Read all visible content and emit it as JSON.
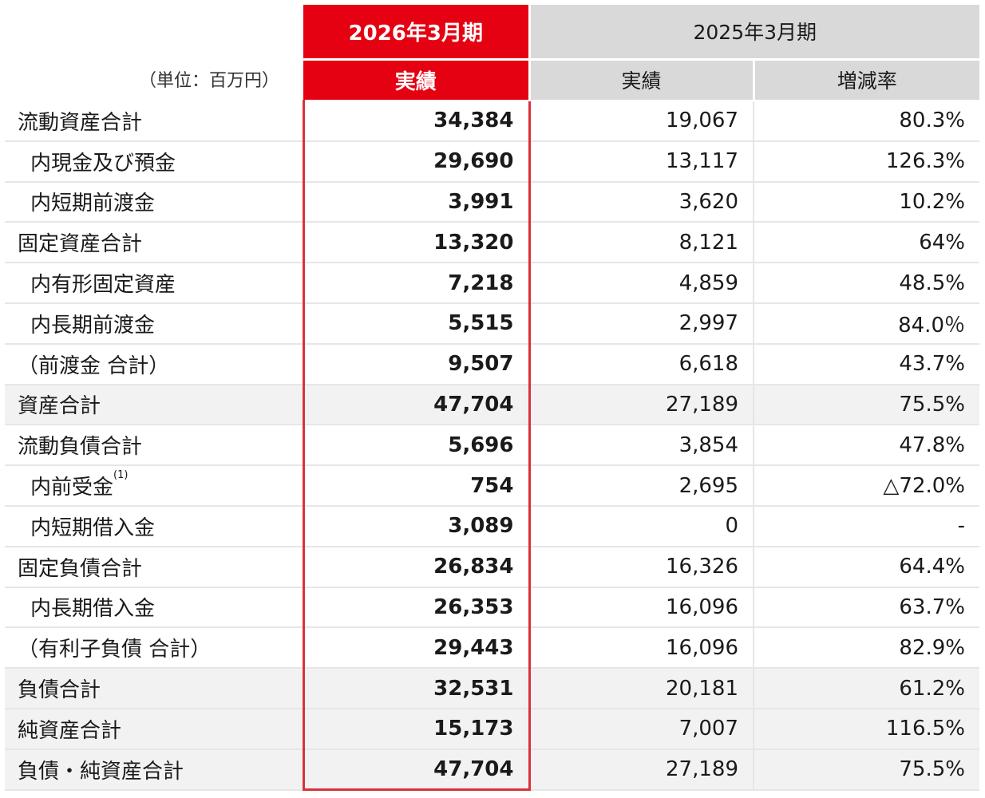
{
  "header": {
    "current_period": "2026年3月期",
    "current_sub": "実績",
    "previous_period": "2025年3月期",
    "previous_sub": "実績",
    "rate_sub": "増減率",
    "unit": "（単位：百万円）"
  },
  "rows": [
    {
      "label": "流動資産合計",
      "current": "34,384",
      "previous": "19,067",
      "rate": "80.3%"
    },
    {
      "label": "内現金及び預金",
      "current": "29,690",
      "previous": "13,117",
      "rate": "126.3%"
    },
    {
      "label": "内短期前渡金",
      "current": "3,991",
      "previous": "3,620",
      "rate": "10.2%"
    },
    {
      "label": "固定資産合計",
      "current": "13,320",
      "previous": "8,121",
      "rate": "64%"
    },
    {
      "label": "内有形固定資産",
      "current": "7,218",
      "previous": "4,859",
      "rate": "48.5%"
    },
    {
      "label": "内長期前渡金",
      "current": "5,515",
      "previous": "2,997",
      "rate": "84.0％"
    },
    {
      "label": "（前渡金 合計）",
      "current": "9,507",
      "previous": "6,618",
      "rate": "43.7%"
    },
    {
      "label": "資産合計",
      "current": "47,704",
      "previous": "27,189",
      "rate": "75.5%"
    },
    {
      "label": "流動負債合計",
      "current": "5,696",
      "previous": "3,854",
      "rate": "47.8%"
    },
    {
      "label": "内前受金",
      "footnote": "(1)",
      "current": "754",
      "previous": "2,695",
      "rate": "△72.0%"
    },
    {
      "label": "内短期借入金",
      "current": "3,089",
      "previous": "0",
      "rate": "-"
    },
    {
      "label": "固定負債合計",
      "current": "26,834",
      "previous": "16,326",
      "rate": "64.4%"
    },
    {
      "label": "内長期借入金",
      "current": "26,353",
      "previous": "16,096",
      "rate": "63.7%"
    },
    {
      "label": "（有利子負債 合計）",
      "current": "29,443",
      "previous": "16,096",
      "rate": "82.9%"
    },
    {
      "label": "負債合計",
      "current": "32,531",
      "previous": "20,181",
      "rate": "61.2%"
    },
    {
      "label": "純資産合計",
      "current": "15,173",
      "previous": "7,007",
      "rate": "116.5%"
    },
    {
      "label": "負債・純資産合計",
      "current": "47,704",
      "previous": "27,189",
      "rate": "75.5%"
    }
  ],
  "colors": {
    "accent_red": "#e50012",
    "header_gray": "#d9d9d9",
    "shade_gray": "#f2f2f2"
  }
}
